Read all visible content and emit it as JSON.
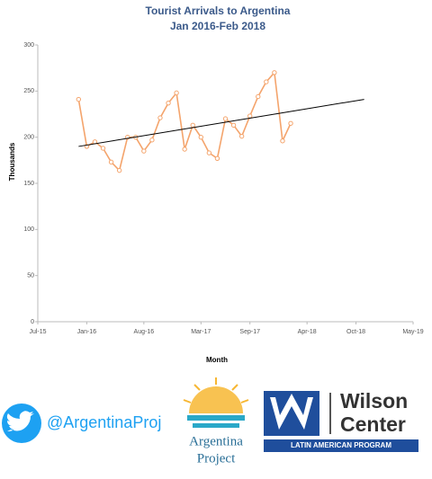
{
  "chart_data": {
    "type": "line",
    "title": "Tourist Arrivals to Argentina",
    "subtitle": "Jan 2016-Feb 2018",
    "y_label": "Thousands",
    "x_label": "Month",
    "x": [
      "2015-12",
      "2016-01",
      "2016-02",
      "2016-03",
      "2016-04",
      "2016-05",
      "2016-06",
      "2016-07",
      "2016-08",
      "2016-09",
      "2016-10",
      "2016-11",
      "2016-12",
      "2017-01",
      "2017-02",
      "2017-03",
      "2017-04",
      "2017-05",
      "2017-06",
      "2017-07",
      "2017-08",
      "2017-09",
      "2017-10",
      "2017-11",
      "2017-12",
      "2018-01",
      "2018-02"
    ],
    "series": [
      {
        "color": "#f4a46c",
        "values": [
          241,
          190,
          195,
          188,
          173,
          164,
          200,
          200,
          185,
          197,
          221,
          237,
          248,
          187,
          213,
          200,
          183,
          177,
          220,
          213,
          201,
          223,
          244,
          260,
          270,
          196,
          215
        ]
      }
    ],
    "trendline": {
      "color": "#000000",
      "x": [
        "2015-12",
        "2018-11"
      ],
      "values": [
        190,
        241
      ]
    },
    "xlim": [
      "2015-07",
      "2019-05"
    ],
    "xticks": [
      {
        "value": "2015-07",
        "label": "Jul-15"
      },
      {
        "value": "2016-01",
        "label": "Jan-16"
      },
      {
        "value": "2016-08",
        "label": "Aug-16"
      },
      {
        "value": "2017-03",
        "label": "Mar-17"
      },
      {
        "value": "2017-09",
        "label": "Sep-17"
      },
      {
        "value": "2018-04",
        "label": "Apr-18"
      },
      {
        "value": "2018-10",
        "label": "Oct-18"
      },
      {
        "value": "2019-05",
        "label": "May-19"
      }
    ],
    "ylim": [
      0,
      300
    ],
    "yticks": [
      0,
      50,
      100,
      150,
      200,
      250,
      300
    ],
    "grid": false
  },
  "footer": {
    "twitter": "@ArgentinaProj",
    "project": [
      "Argentina",
      "Project"
    ],
    "wilson": [
      "Wilson",
      "Center"
    ],
    "program": "LATIN AMERICAN PROGRAM"
  }
}
